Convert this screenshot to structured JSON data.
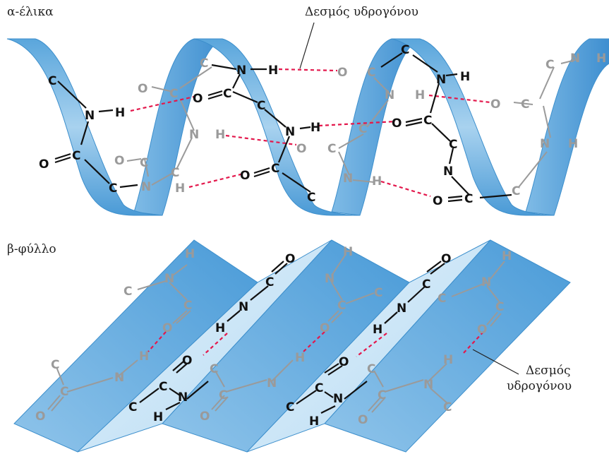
{
  "labels": {
    "alpha_title": "α-έλικα",
    "beta_title": "β-φύλλο",
    "hbond_alpha": "Δεσμός υδρογόνου",
    "hbond_beta_line1": "Δεσμός",
    "hbond_beta_line2": "υδρογόνου"
  },
  "atoms": {
    "C": "C",
    "N": "N",
    "O": "O",
    "H": "H"
  },
  "colors": {
    "ribbon_light": "#c7e3f5",
    "ribbon_dark": "#5aa6dc",
    "ribbon_edge": "#3d8fcc",
    "hbond": "#e3184c",
    "bond_front": "#111111",
    "bond_back": "#9a9a9a"
  }
}
